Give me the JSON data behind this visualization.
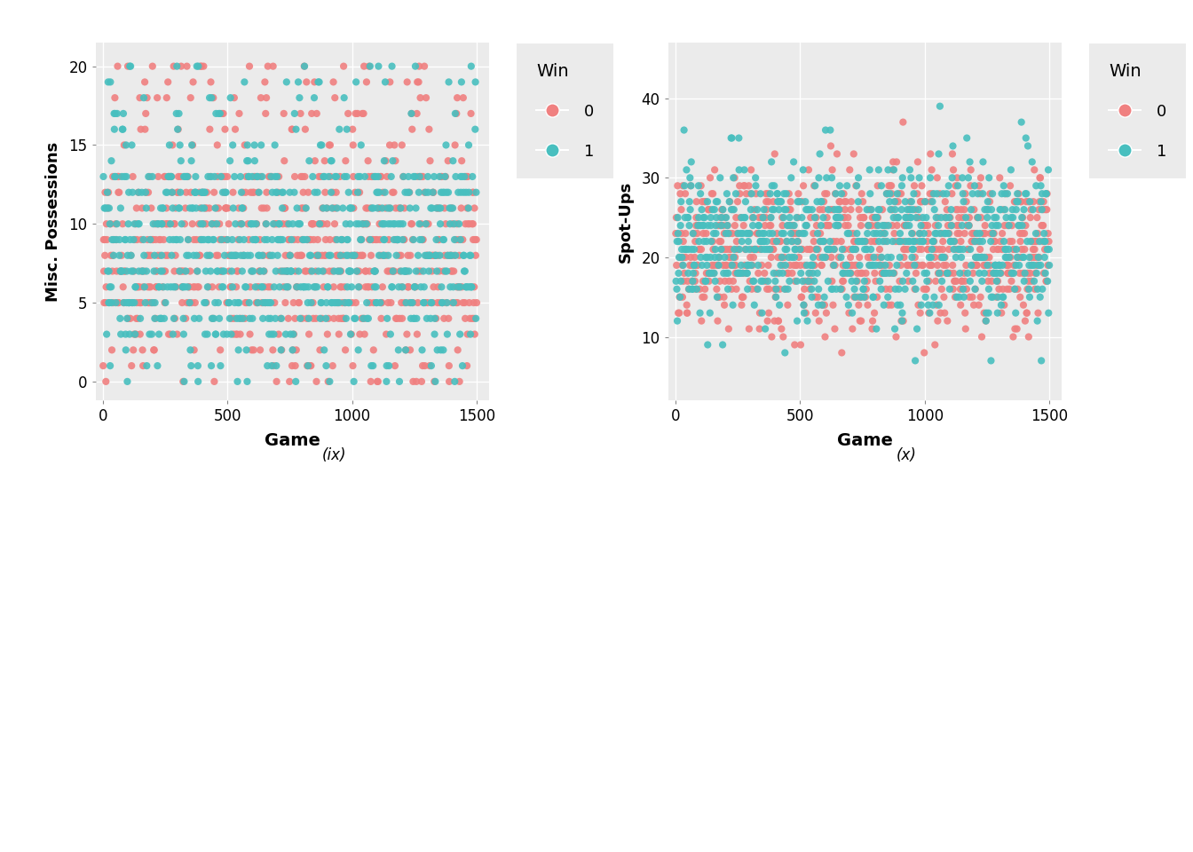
{
  "left_plot": {
    "xlabel": "Game",
    "ylabel": "Misc. Possessions",
    "xlim": [
      -30,
      1550
    ],
    "ylim": [
      -1.2,
      21.5
    ],
    "xticks": [
      0,
      500,
      1000,
      1500
    ],
    "yticks": [
      0,
      5,
      10,
      15,
      20
    ],
    "caption": "(ix)"
  },
  "right_plot": {
    "xlabel": "Game",
    "ylabel": "Spot-Ups",
    "xlim": [
      -30,
      1550
    ],
    "ylim": [
      2,
      47
    ],
    "xticks": [
      0,
      500,
      1000,
      1500
    ],
    "yticks": [
      10,
      20,
      30,
      40
    ],
    "caption": "(x)"
  },
  "legend_title": "Win",
  "legend_labels": [
    "0",
    "1"
  ],
  "color_0": "#F08080",
  "color_1": "#48BFBF",
  "bg_color": "#EBEBEB",
  "grid_color": "white",
  "n_games": 1500,
  "seed": 42,
  "fig_width": 13.44,
  "fig_height": 9.6
}
